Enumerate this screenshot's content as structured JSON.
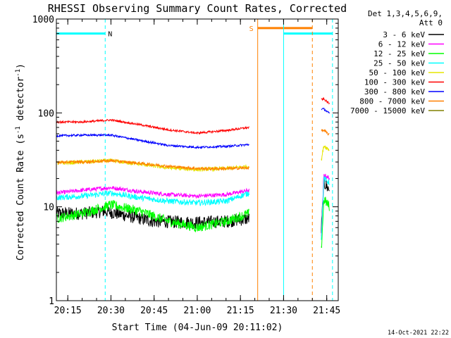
{
  "chart_data": {
    "type": "line",
    "title": "RHESSI Observing Summary Count Rates, Corrected",
    "xlabel": "Start Time (04-Jun-09 20:11:02)",
    "ylabel_parts": [
      "Corrected Count Rate (s",
      "-1",
      " detector",
      "-1",
      ")"
    ],
    "xscale": "linear",
    "yscale": "log",
    "xlim": [
      "20:11:02",
      "21:49:00"
    ],
    "ylim": [
      1,
      1000
    ],
    "x_ticks": [
      "20:15",
      "20:30",
      "20:45",
      "21:00",
      "21:15",
      "21:30",
      "21:45"
    ],
    "y_ticks": [
      "1",
      "10",
      "100",
      "1000"
    ],
    "legend_position": "right",
    "legend_header": [
      "Det 1,3,4,5,6,9,",
      "Att 0"
    ],
    "footer": "14-Oct-2021 22:22",
    "flags": [
      {
        "label": "",
        "type": "bar",
        "start": "20:11:02",
        "end": "20:28:00",
        "value": 700,
        "color": "#00ffff"
      },
      {
        "label": "N",
        "type": "marker",
        "at": "20:28:00",
        "color": "#00ffff"
      },
      {
        "label": "S",
        "type": "bar",
        "start": "21:21:00",
        "end": "21:40:00",
        "value": 800,
        "color": "#ff8000"
      },
      {
        "label": "",
        "type": "bar",
        "start": "21:30:00",
        "end": "21:47:00",
        "value": 700,
        "color": "#00ffff"
      }
    ],
    "vertical_lines": [
      {
        "time": "20:11:02",
        "color": "#00ffff",
        "style": "solid"
      },
      {
        "time": "20:28:00",
        "color": "#00ffff",
        "style": "dashed"
      },
      {
        "time": "21:21:00",
        "color": "#ff8000",
        "style": "solid"
      },
      {
        "time": "21:30:00",
        "color": "#00ffff",
        "style": "solid"
      },
      {
        "time": "21:40:00",
        "color": "#ff8000",
        "style": "dashed"
      },
      {
        "time": "21:47:00",
        "color": "#00ffff",
        "style": "dashed"
      }
    ],
    "series": [
      {
        "name": "3 - 6 keV",
        "color": "#000000",
        "noise": 0.16,
        "x": [
          "20:11",
          "20:20",
          "20:28",
          "20:36",
          "20:45",
          "21:00",
          "21:10",
          "21:18",
          "21:43",
          "21:44",
          "21:46"
        ],
        "y": [
          8.5,
          8.5,
          9,
          8,
          7,
          6.8,
          7,
          7.5,
          5,
          18,
          15
        ]
      },
      {
        "name": "6 - 12 keV",
        "color": "#ff00ff",
        "noise": 0.05,
        "x": [
          "20:11",
          "20:20",
          "20:30",
          "20:40",
          "20:50",
          "21:00",
          "21:10",
          "21:18",
          "21:43",
          "21:44",
          "21:46"
        ],
        "y": [
          14,
          15,
          16,
          14.5,
          13.5,
          13,
          13.5,
          15,
          4,
          22,
          20
        ]
      },
      {
        "name": "12 - 25 keV",
        "color": "#00ff00",
        "noise": 0.12,
        "x": [
          "20:11",
          "20:20",
          "20:30",
          "20:40",
          "20:50",
          "21:00",
          "21:10",
          "21:18",
          "21:43",
          "21:44",
          "21:46"
        ],
        "y": [
          7.5,
          8.5,
          10.5,
          9,
          7,
          6,
          7,
          8.5,
          3,
          12,
          10
        ]
      },
      {
        "name": "25 - 50 keV",
        "color": "#00ffff",
        "noise": 0.07,
        "x": [
          "20:11",
          "20:20",
          "20:30",
          "20:40",
          "20:50",
          "21:00",
          "21:10",
          "21:18",
          "21:43",
          "21:44",
          "21:46"
        ],
        "y": [
          12.5,
          13,
          14,
          12.5,
          11.5,
          11,
          11.5,
          14,
          4,
          20,
          18
        ]
      },
      {
        "name": "50 - 100 keV",
        "color": "#e6e600",
        "noise": 0.05,
        "x": [
          "20:11",
          "20:20",
          "20:30",
          "20:40",
          "20:50",
          "21:00",
          "21:10",
          "21:18",
          "21:43",
          "21:44",
          "21:46"
        ],
        "y": [
          29,
          30,
          31,
          28.5,
          26,
          25,
          25.5,
          27,
          30,
          45,
          40
        ]
      },
      {
        "name": "100 - 300 keV",
        "color": "#ff0000",
        "noise": 0.025,
        "x": [
          "20:11",
          "20:20",
          "20:30",
          "20:40",
          "20:50",
          "21:00",
          "21:10",
          "21:18",
          "21:43",
          "21:44",
          "21:46"
        ],
        "y": [
          80,
          80,
          84,
          75,
          66,
          61,
          65,
          70,
          140,
          140,
          125
        ]
      },
      {
        "name": "300 - 800 keV",
        "color": "#0000ff",
        "noise": 0.025,
        "x": [
          "20:11",
          "20:20",
          "20:30",
          "20:40",
          "20:50",
          "21:00",
          "21:10",
          "21:18",
          "21:43",
          "21:44",
          "21:46"
        ],
        "y": [
          57,
          58,
          58,
          51,
          45,
          43,
          44,
          46,
          110,
          110,
          98
        ]
      },
      {
        "name": "800 - 7000 keV",
        "color": "#ff8000",
        "noise": 0.035,
        "x": [
          "20:11",
          "20:20",
          "20:30",
          "20:40",
          "20:50",
          "21:00",
          "21:10",
          "21:18",
          "21:43",
          "21:44",
          "21:46"
        ],
        "y": [
          30,
          30,
          31,
          29,
          27,
          25.5,
          25.5,
          26,
          65,
          65,
          58
        ]
      },
      {
        "name": "7000 - 15000 keV",
        "color": "#808000",
        "noise": 0.03,
        "x": [],
        "y": []
      }
    ]
  }
}
